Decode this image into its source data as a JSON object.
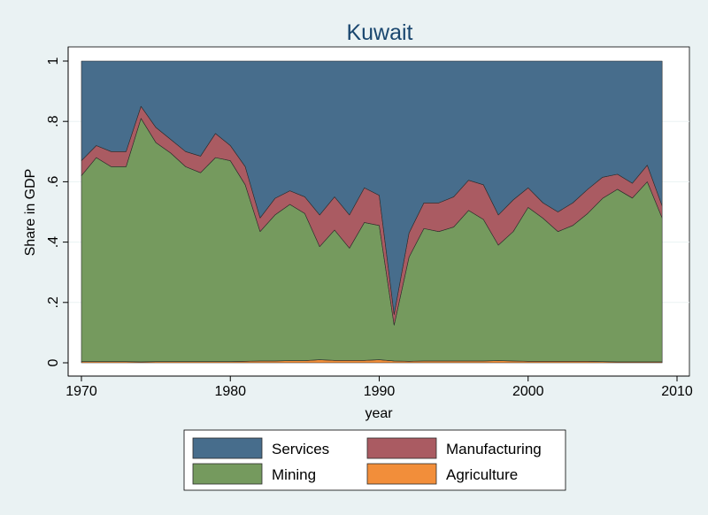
{
  "chart_data": {
    "type": "area",
    "title": "Kuwait",
    "xlabel": "year",
    "ylabel": "Share in GDP",
    "xlim": [
      1970,
      2010
    ],
    "ylim": [
      0,
      1
    ],
    "x_ticks": [
      1970,
      1980,
      1990,
      2000,
      2010
    ],
    "y_ticks": [
      0,
      0.2,
      0.4,
      0.6,
      0.8,
      1
    ],
    "y_tick_labels": [
      "0",
      ".2",
      ".4",
      ".6",
      ".8",
      "1"
    ],
    "stacked": true,
    "grid": true,
    "legend_position": "bottom",
    "x": [
      1970,
      1971,
      1972,
      1973,
      1974,
      1975,
      1976,
      1977,
      1978,
      1979,
      1980,
      1981,
      1982,
      1983,
      1984,
      1985,
      1986,
      1987,
      1988,
      1989,
      1990,
      1991,
      1992,
      1993,
      1994,
      1995,
      1996,
      1997,
      1998,
      1999,
      2000,
      2001,
      2002,
      2003,
      2004,
      2005,
      2006,
      2007,
      2008,
      2009
    ],
    "series": [
      {
        "name": "Agriculture",
        "color": "#f28e3a",
        "values": [
          0.004,
          0.004,
          0.004,
          0.004,
          0.003,
          0.004,
          0.004,
          0.004,
          0.004,
          0.004,
          0.004,
          0.005,
          0.006,
          0.006,
          0.007,
          0.007,
          0.01,
          0.008,
          0.008,
          0.008,
          0.01,
          0.006,
          0.005,
          0.006,
          0.006,
          0.006,
          0.006,
          0.006,
          0.007,
          0.006,
          0.005,
          0.005,
          0.005,
          0.005,
          0.005,
          0.004,
          0.003,
          0.003,
          0.003,
          0.003
        ]
      },
      {
        "name": "Mining",
        "color": "#759a5e",
        "values": [
          0.616,
          0.676,
          0.646,
          0.646,
          0.807,
          0.726,
          0.691,
          0.646,
          0.626,
          0.676,
          0.666,
          0.585,
          0.429,
          0.484,
          0.518,
          0.488,
          0.375,
          0.432,
          0.372,
          0.457,
          0.445,
          0.119,
          0.345,
          0.439,
          0.429,
          0.444,
          0.499,
          0.469,
          0.383,
          0.429,
          0.51,
          0.474,
          0.43,
          0.45,
          0.49,
          0.541,
          0.572,
          0.543,
          0.597,
          0.477
        ]
      },
      {
        "name": "Manufacturing",
        "color": "#aa5b62",
        "values": [
          0.05,
          0.04,
          0.05,
          0.05,
          0.04,
          0.05,
          0.045,
          0.05,
          0.055,
          0.08,
          0.05,
          0.06,
          0.045,
          0.055,
          0.045,
          0.055,
          0.105,
          0.11,
          0.11,
          0.115,
          0.1,
          0.035,
          0.08,
          0.085,
          0.095,
          0.1,
          0.1,
          0.115,
          0.1,
          0.105,
          0.065,
          0.051,
          0.065,
          0.075,
          0.08,
          0.07,
          0.05,
          0.049,
          0.055,
          0.04
        ]
      },
      {
        "name": "Services",
        "color": "#476d8c",
        "values": [
          0.33,
          0.28,
          0.3,
          0.3,
          0.15,
          0.22,
          0.26,
          0.3,
          0.315,
          0.24,
          0.28,
          0.35,
          0.52,
          0.455,
          0.43,
          0.45,
          0.51,
          0.45,
          0.51,
          0.42,
          0.445,
          0.84,
          0.57,
          0.47,
          0.47,
          0.45,
          0.395,
          0.41,
          0.51,
          0.46,
          0.42,
          0.47,
          0.5,
          0.47,
          0.425,
          0.385,
          0.375,
          0.405,
          0.345,
          0.48
        ]
      }
    ],
    "legend_order": [
      "Services",
      "Manufacturing",
      "Mining",
      "Agriculture"
    ]
  }
}
